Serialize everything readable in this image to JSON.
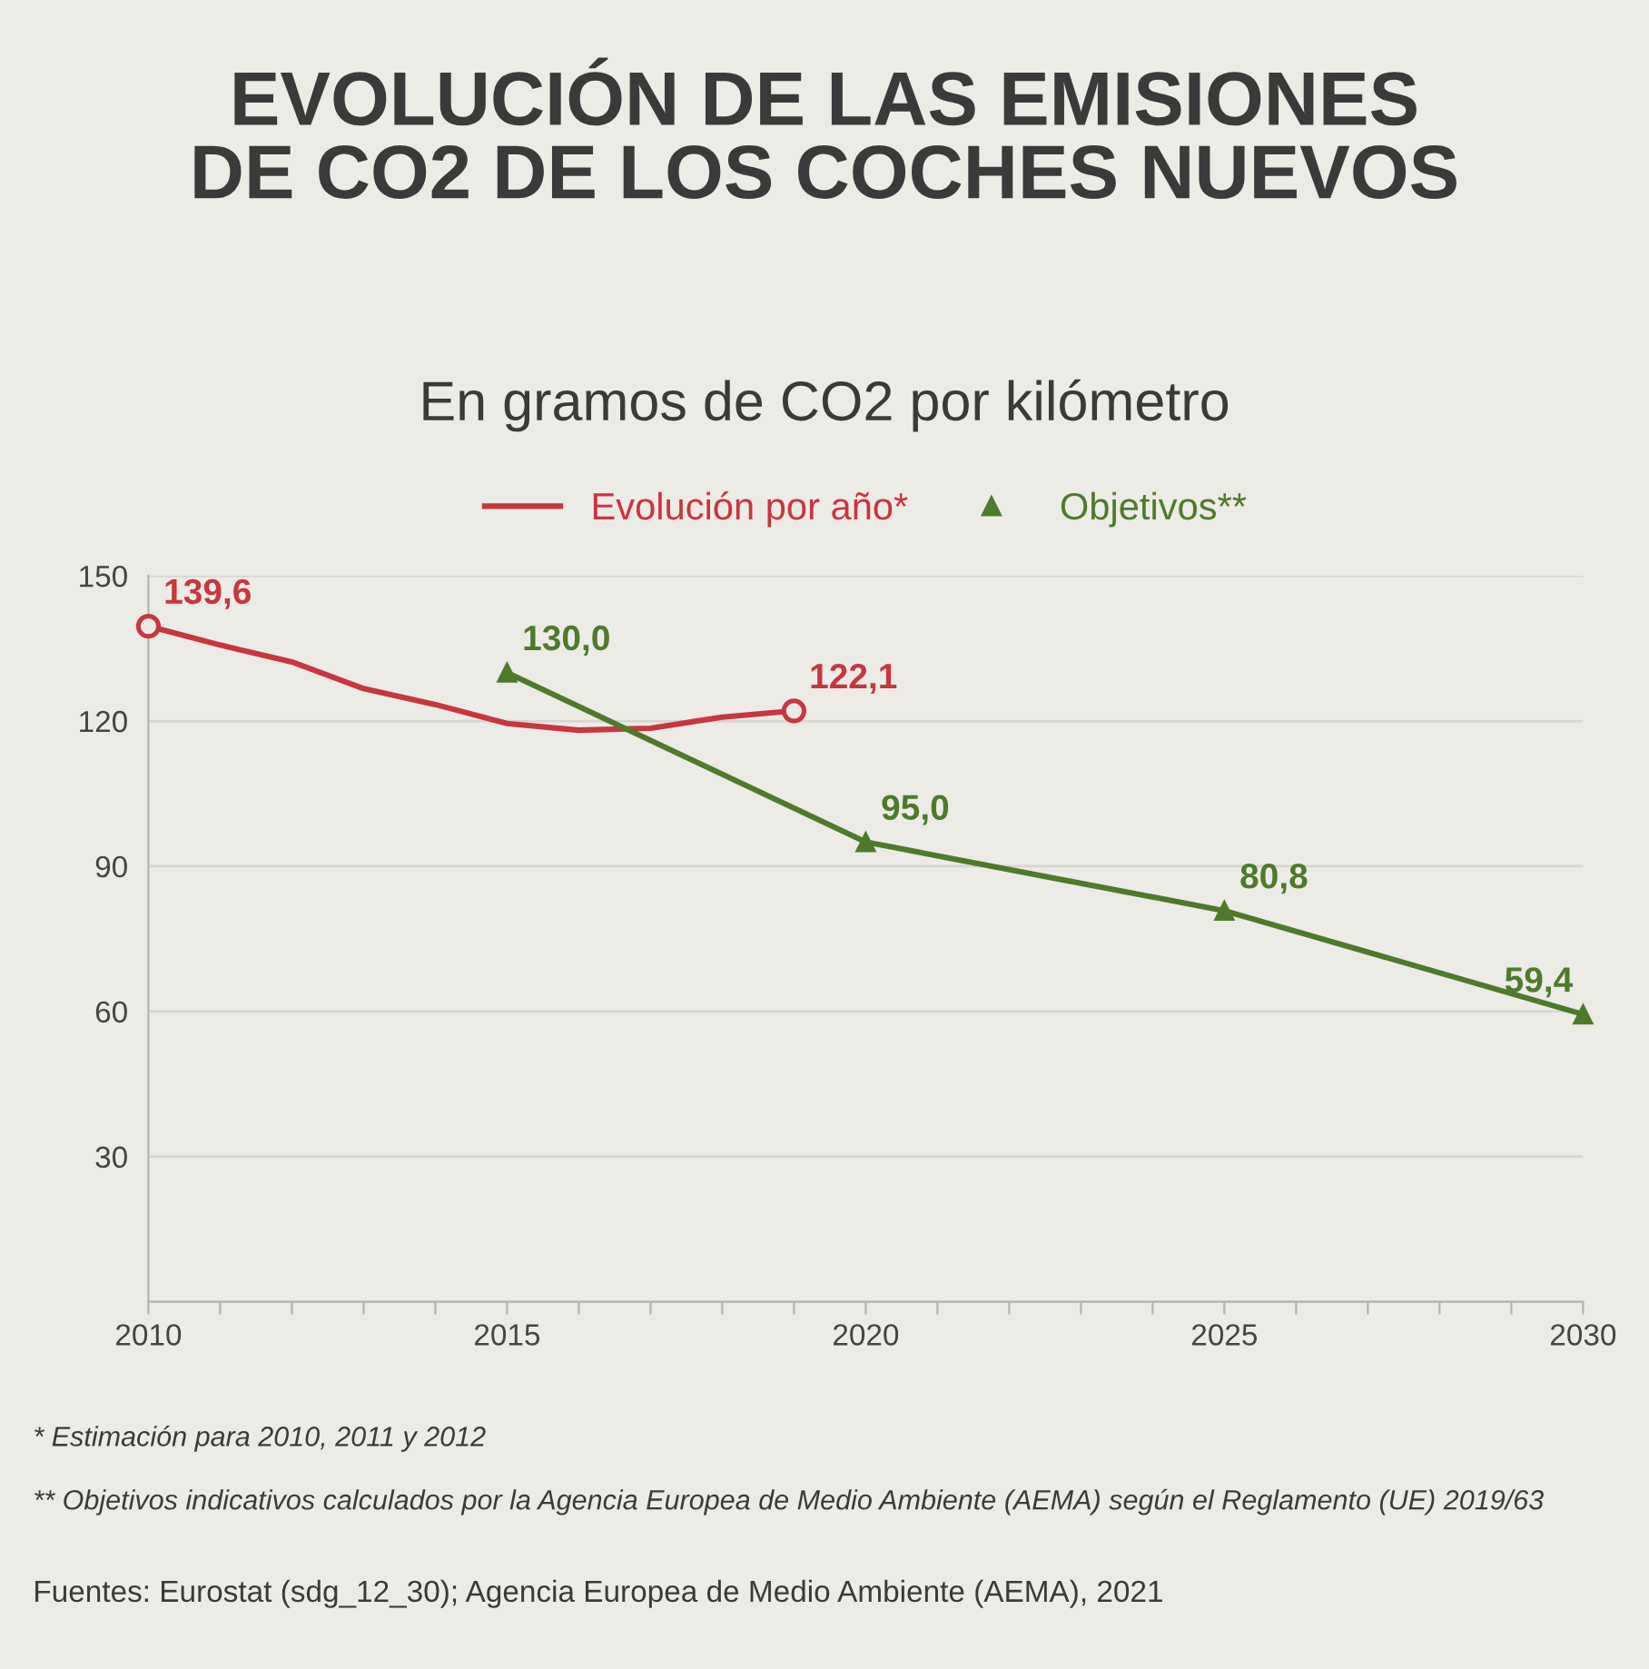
{
  "chart_data": {
    "type": "line",
    "title": "EVOLUCIÓN DE LAS EMISIONES\nDE CO2 DE LOS COCHES NUEVOS",
    "subtitle": "En gramos de CO2 por kilómetro",
    "series": [
      {
        "name": "Evolución por año*",
        "color": "#c8363f",
        "x": [
          2010,
          2011,
          2012,
          2013,
          2014,
          2015,
          2016,
          2017,
          2018,
          2019
        ],
        "values": [
          139.6,
          135.7,
          132.2,
          126.7,
          123.4,
          119.5,
          118.1,
          118.5,
          120.8,
          122.1
        ]
      },
      {
        "type": "scatter",
        "color": "#c8363f",
        "marker": "circle",
        "x": [
          2010,
          2019
        ],
        "values": [
          139.6,
          122.1
        ],
        "value_labels": [
          "139,6",
          "122,1"
        ]
      },
      {
        "name": "Objetivos**",
        "color": "#4e7a2a",
        "marker": "triangle",
        "x": [
          2015,
          2020,
          2025,
          2030
        ],
        "values": [
          130.0,
          95.0,
          80.8,
          59.4
        ],
        "value_labels": [
          "130,0",
          "95,0",
          "80,8",
          "59,4"
        ]
      }
    ],
    "xlim": [
      2010,
      2030
    ],
    "xticks": [
      2010,
      {
        "value": 2011,
        "label": null
      },
      {
        "value": 2012,
        "label": null
      },
      {
        "value": 2013,
        "label": null
      },
      {
        "value": 2014,
        "label": null
      },
      2015,
      {
        "value": 2016,
        "label": null
      },
      {
        "value": 2017,
        "label": null
      },
      {
        "value": 2018,
        "label": null
      },
      {
        "value": 2019,
        "label": null
      },
      2020,
      {
        "value": 2021,
        "label": null
      },
      {
        "value": 2022,
        "label": null
      },
      {
        "value": 2023,
        "label": null
      },
      {
        "value": 2024,
        "label": null
      },
      2025,
      {
        "value": 2026,
        "label": null
      },
      {
        "value": 2027,
        "label": null
      },
      {
        "value": 2028,
        "label": null
      },
      {
        "value": 2029,
        "label": null
      },
      2030
    ],
    "ylim": [
      0,
      150
    ],
    "yticks": [
      {
        "value": 0,
        "label": null
      },
      30,
      60,
      90,
      120,
      150
    ],
    "grid": "y",
    "legend": "top",
    "annotations": [
      "* Estimación para 2010, 2011 y 2012",
      "** Objetivos indicativos calculados por la Agencia Europea de Medio Ambiente (AEMA) según el Reglamento (UE) 2019/63",
      "Fuentes: Eurostat (sdg_12_30); Agencia Europea de Medio Ambiente (AEMA), 2021"
    ]
  }
}
